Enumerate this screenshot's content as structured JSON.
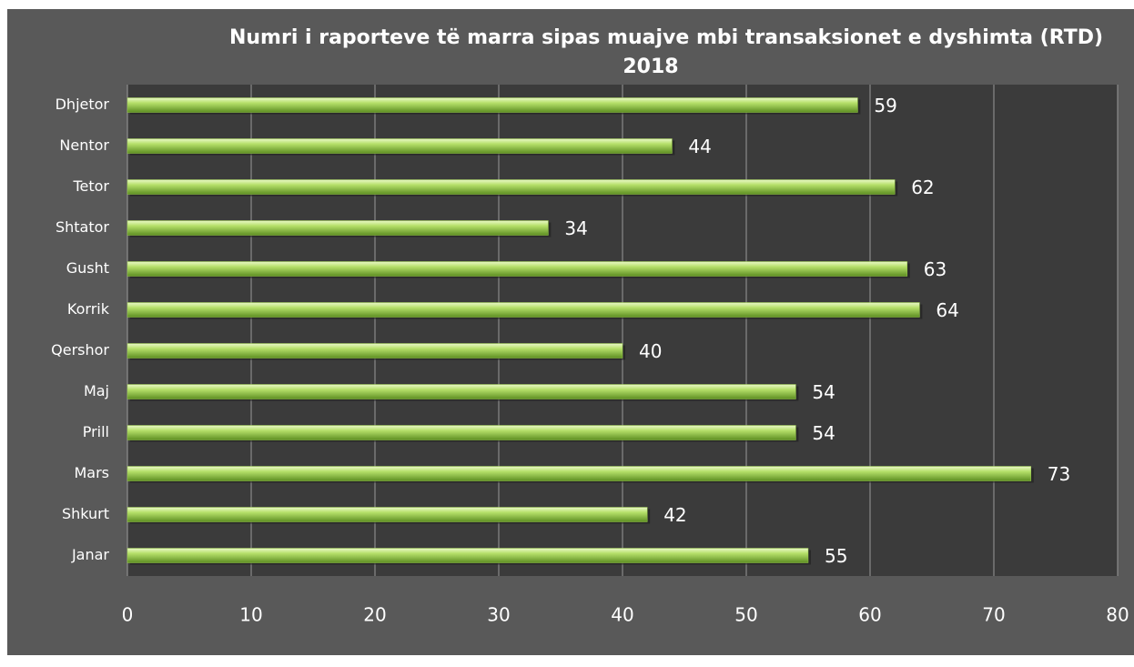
{
  "chart_data": {
    "type": "bar",
    "orientation": "horizontal",
    "title": "Numri i raporteve të marra sipas muajve mbi transaksionet e dyshimta (RTD)",
    "subtitle": "2018",
    "categories": [
      "Janar",
      "Shkurt",
      "Mars",
      "Prill",
      "Maj",
      "Qershor",
      "Korrik",
      "Gusht",
      "Shtator",
      "Tetor",
      "Nentor",
      "Dhjetor"
    ],
    "values": [
      55,
      42,
      73,
      54,
      54,
      40,
      64,
      63,
      34,
      62,
      44,
      59
    ],
    "color": "#9acd4a",
    "xlim": [
      0,
      80
    ],
    "xticks": [
      0,
      10,
      20,
      30,
      40,
      50,
      60,
      70,
      80
    ],
    "grid": true
  }
}
